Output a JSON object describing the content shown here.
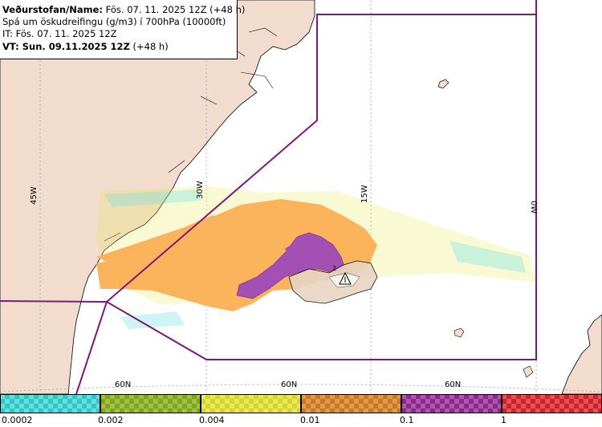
{
  "info": {
    "line1_bold": "Veðurstofan/Name:",
    "line1_rest": " Fös. 07. 11. 2025 12Z (+48 h)",
    "line2": "Spá um öskudreifingu (g/m3) í 700hPa (10000ft)",
    "line3": "IT: Fös. 07. 11. 2025 12Z",
    "line4_bold": "VT: Sun. 09.11.2025 12Z",
    "line4_rest": " (+48 h)"
  },
  "map": {
    "meridian_labels": [
      "45W",
      "30W",
      "15W",
      "0W"
    ],
    "parallel_labels": [
      "60N",
      "60N",
      "60N"
    ],
    "volcano_marker_label": "2",
    "colors": {
      "land": "#f1dccd",
      "sea": "#ffffff",
      "boundary": "#7a1a7a",
      "ash_low": "#fbb35c",
      "ash_mid": "#a34fb4"
    }
  },
  "legend": {
    "bins": [
      {
        "color": "#2fc6c6",
        "alt": "#66dede"
      },
      {
        "color": "#7da520",
        "alt": "#a0c040"
      },
      {
        "color": "#d4d42c",
        "alt": "#e8e860"
      },
      {
        "color": "#c67a28",
        "alt": "#e39a48"
      },
      {
        "color": "#8a2a8a",
        "alt": "#b055b0"
      },
      {
        "color": "#c8262a",
        "alt": "#e85055"
      }
    ],
    "labels": [
      "0.0002",
      "0.002",
      "0.004",
      "0.01",
      "0.1",
      "1"
    ]
  }
}
